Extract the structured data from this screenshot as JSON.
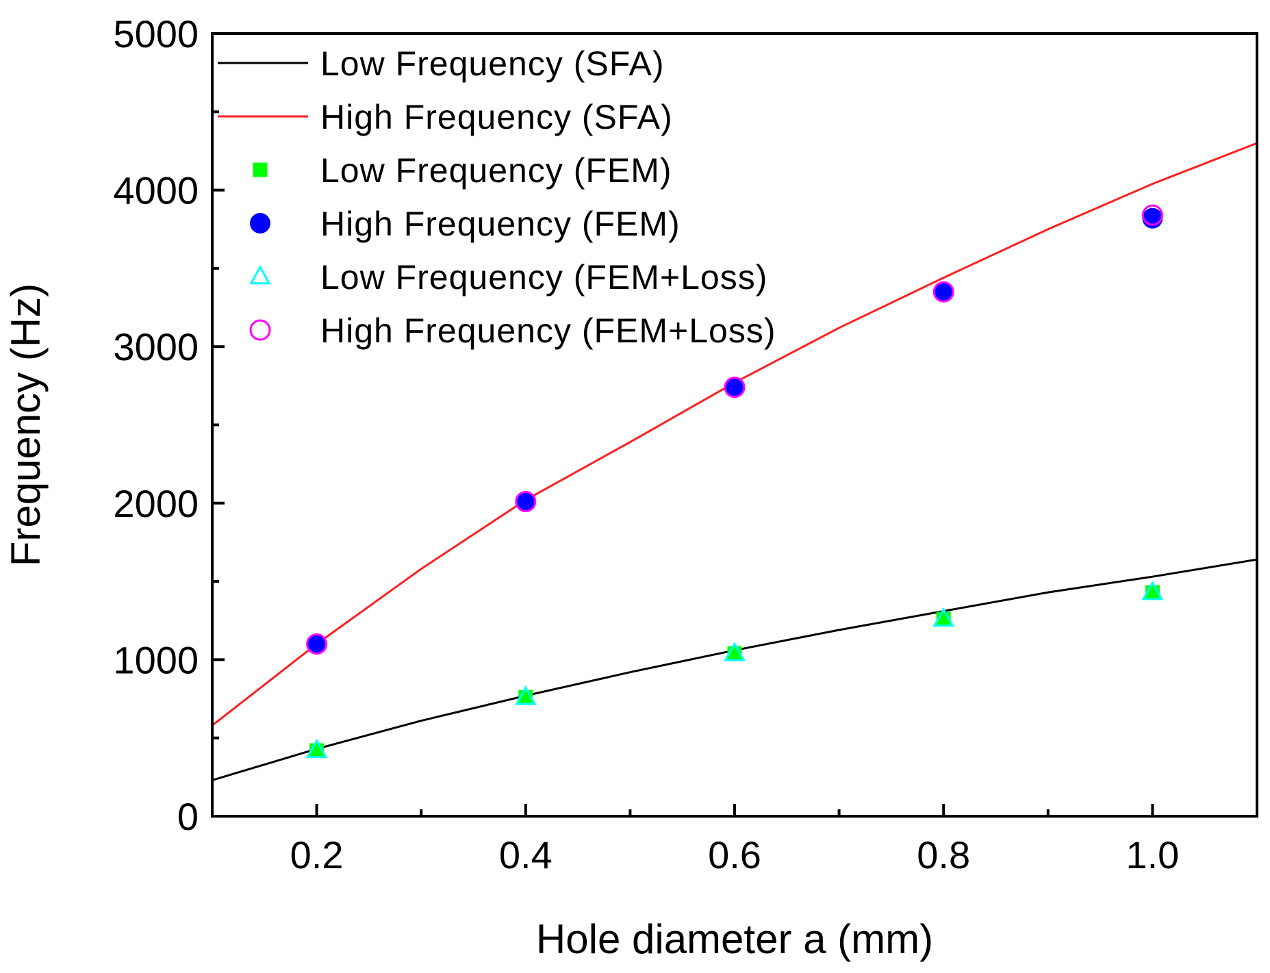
{
  "chart_data": {
    "type": "line",
    "title": "",
    "xlabel": "Hole diameter a (mm)",
    "ylabel": "Frequency (Hz)",
    "xlim": [
      0.1,
      1.1
    ],
    "ylim": [
      0,
      5000
    ],
    "xticks": [
      0.2,
      0.4,
      0.6,
      0.8,
      1.0
    ],
    "xtick_labels": [
      "0.2",
      "0.4",
      "0.6",
      "0.8",
      "1.0"
    ],
    "xminor_ticks": [
      0.3,
      0.5,
      0.7,
      0.9
    ],
    "yticks": [
      0,
      1000,
      2000,
      3000,
      4000,
      5000
    ],
    "ytick_labels": [
      "0",
      "1000",
      "2000",
      "3000",
      "4000",
      "5000"
    ],
    "yminor_ticks": [
      500,
      1500,
      2500,
      3500,
      4500
    ],
    "grid": false,
    "legend_position": "top-left",
    "series": [
      {
        "name": "Low Frequency (SFA)",
        "kind": "line",
        "color": "#000000",
        "x": [
          0.1,
          0.2,
          0.3,
          0.4,
          0.5,
          0.6,
          0.7,
          0.8,
          0.9,
          1.0,
          1.1
        ],
        "y": [
          230,
          430,
          610,
          770,
          920,
          1060,
          1190,
          1310,
          1430,
          1530,
          1640
        ]
      },
      {
        "name": "High Frequency (SFA)",
        "kind": "line",
        "color": "#ff2020",
        "x": [
          0.1,
          0.2,
          0.3,
          0.4,
          0.5,
          0.6,
          0.7,
          0.8,
          0.9,
          1.0,
          1.1
        ],
        "y": [
          580,
          1100,
          1580,
          2020,
          2390,
          2770,
          3120,
          3440,
          3750,
          4040,
          4300
        ]
      },
      {
        "name": "Low Frequency (FEM)",
        "kind": "marker",
        "marker": "filled-square",
        "color": "#00ff00",
        "x": [
          0.2,
          0.4,
          0.6,
          0.8,
          1.0
        ],
        "y": [
          420,
          760,
          1040,
          1260,
          1430
        ]
      },
      {
        "name": "High Frequency (FEM)",
        "kind": "marker",
        "marker": "filled-circle",
        "color": "#0000ff",
        "x": [
          0.2,
          0.4,
          0.6,
          0.8,
          1.0
        ],
        "y": [
          1100,
          2010,
          2740,
          3350,
          3820
        ]
      },
      {
        "name": "Low Frequency (FEM+Loss)",
        "kind": "marker",
        "marker": "open-triangle",
        "color": "#00ffff",
        "x": [
          0.2,
          0.4,
          0.6,
          0.8,
          1.0
        ],
        "y": [
          420,
          760,
          1040,
          1260,
          1430
        ]
      },
      {
        "name": "High Frequency (FEM+Loss)",
        "kind": "marker",
        "marker": "open-circle",
        "color": "#ff00ff",
        "x": [
          0.2,
          0.4,
          0.6,
          0.8,
          1.0
        ],
        "y": [
          1100,
          2010,
          2740,
          3350,
          3840
        ]
      }
    ]
  }
}
